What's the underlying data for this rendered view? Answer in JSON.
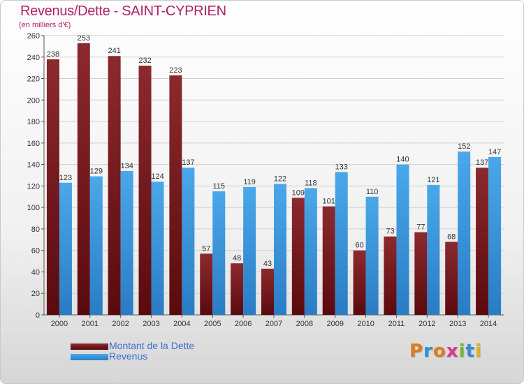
{
  "title": "Revenus/Dette - SAINT-CYPRIEN",
  "subtitle": "(en milliers d'€)",
  "chart_data": {
    "type": "bar",
    "categories": [
      "2000",
      "2001",
      "2002",
      "2003",
      "2004",
      "2005",
      "2006",
      "2007",
      "2008",
      "2009",
      "2010",
      "2011",
      "2012",
      "2013",
      "2014"
    ],
    "series": [
      {
        "name": "Montant de la Dette",
        "color": "#7a1a1e",
        "values": [
          238,
          253,
          241,
          232,
          223,
          57,
          48,
          43,
          109,
          101,
          60,
          73,
          77,
          68,
          137
        ]
      },
      {
        "name": "Revenus",
        "color": "#3d9be0",
        "values": [
          123,
          129,
          134,
          124,
          137,
          115,
          119,
          122,
          118,
          133,
          110,
          140,
          121,
          152,
          147
        ]
      }
    ],
    "ylim": [
      0,
      260
    ],
    "yticks": [
      0,
      20,
      40,
      60,
      80,
      100,
      120,
      140,
      160,
      180,
      200,
      220,
      240,
      260
    ],
    "grid": true,
    "legend_position": "bottom-left"
  },
  "legend": [
    {
      "label": "Montant de la Dette",
      "color": "#7a1a1e"
    },
    {
      "label": "Revenus",
      "color": "#3d9be0"
    }
  ],
  "logo": {
    "letters": [
      {
        "char": "P",
        "color": "#e07b1a"
      },
      {
        "char": "r",
        "color": "#2a8fd6"
      },
      {
        "char": "o",
        "color": "#e07b1a"
      },
      {
        "char": "x",
        "color": "#d63a8a"
      },
      {
        "char": "i",
        "color": "#7ab828"
      },
      {
        "char": "t",
        "color": "#2a8fd6"
      },
      {
        "char": "i",
        "color": "#e0b020"
      }
    ]
  }
}
